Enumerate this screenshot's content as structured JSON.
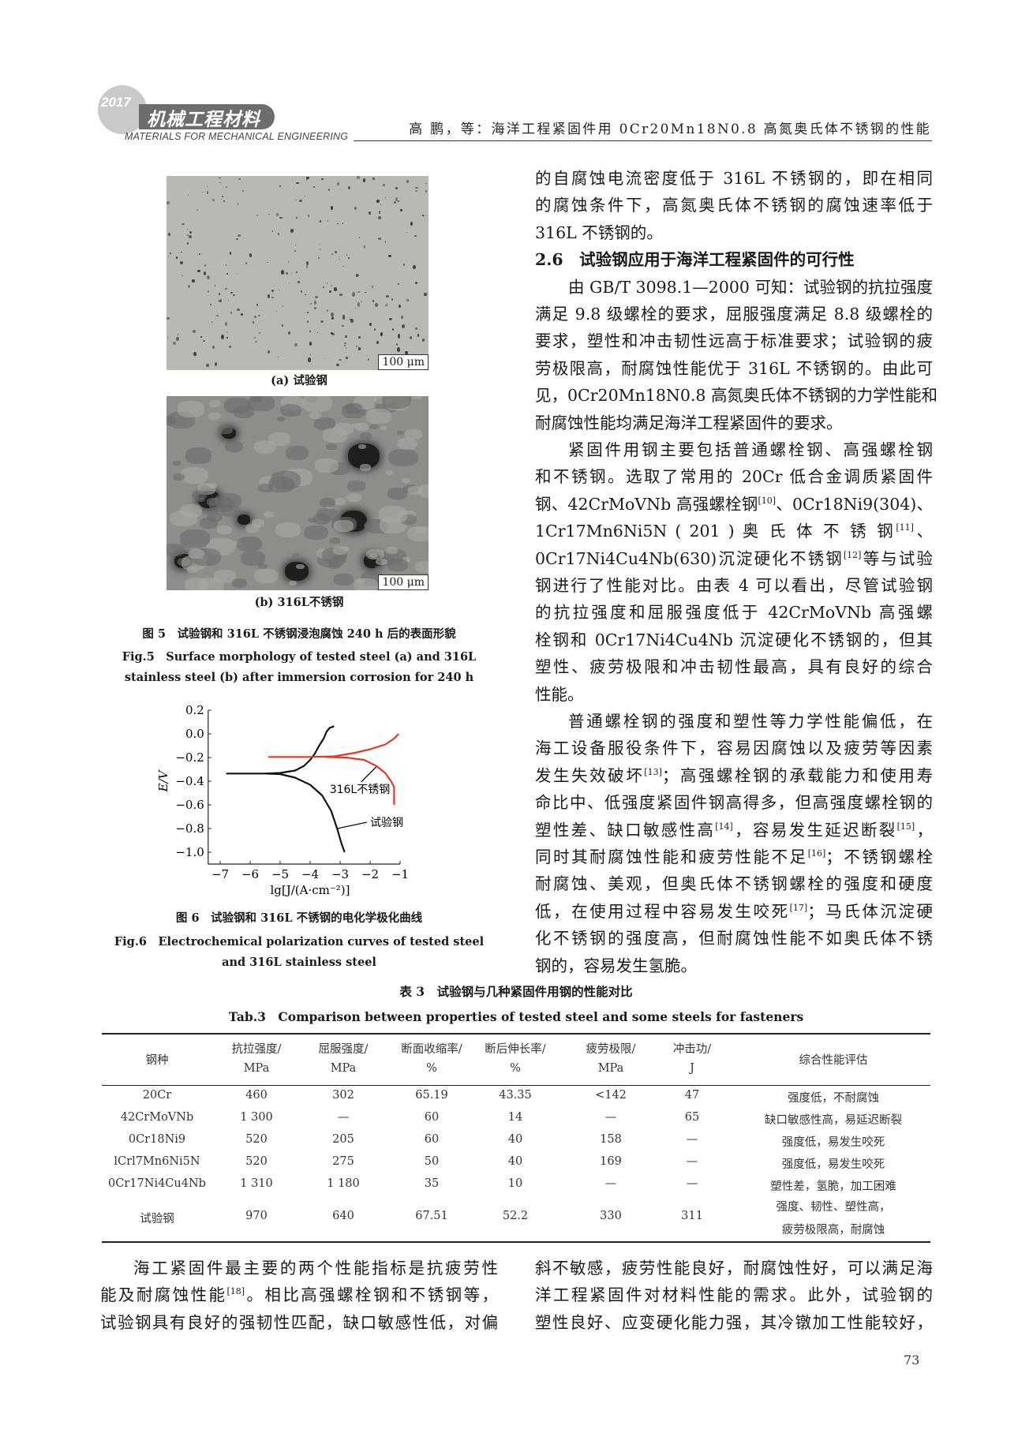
{
  "header": {
    "logo_year": "2017",
    "logo_cn": "机械工程材料",
    "logo_en": "MATERIALS FOR MECHANICAL ENGINEERING",
    "running_title": "高 鹏，等：海洋工程紧固件用 0Cr20Mn18N0.8 高氮奥氏体不锈钢的性能"
  },
  "figure5": {
    "scale_bar": "100 μm",
    "sub_a": "(a) 试验钢",
    "sub_b": "(b) 316L不锈钢",
    "caption_cn": "图 5　试验钢和 316L 不锈钢浸泡腐蚀 240 h 后的表面形貌",
    "caption_en_1": "Fig.5　Surface morphology of tested steel (a) and 316L",
    "caption_en_2": "stainless steel (b) after immersion corrosion for 240 h"
  },
  "figure6": {
    "caption_cn": "图 6　试验钢和 316L 不锈钢的电化学极化曲线",
    "caption_en_1": "Fig.6　Electrochemical polarization curves of tested steel",
    "caption_en_2": "and 316L stainless steel"
  },
  "chart_data": {
    "type": "line",
    "xlabel": "lg[J/(A·cm⁻²)]",
    "ylabel": "E/V",
    "xlim": [
      -7.4,
      -1
    ],
    "ylim": [
      -1.1,
      0.2
    ],
    "xticks": [
      "−7",
      "−6",
      "−5",
      "−4",
      "−3",
      "−2",
      "−1"
    ],
    "xtick_values": [
      -7,
      -6,
      -5,
      -4,
      -3,
      -2,
      -1
    ],
    "yticks": [
      "0.2",
      "0.0",
      "−0.2",
      "−0.4",
      "−0.6",
      "−0.8",
      "−1.0"
    ],
    "ytick_values": [
      0.2,
      0.0,
      -0.2,
      -0.4,
      -0.6,
      -0.8,
      -1.0
    ],
    "grid": false,
    "series": [
      {
        "name": "试验钢",
        "color": "#111111",
        "branches": [
          [
            [
              -6.8,
              -0.335
            ],
            [
              -5.5,
              -0.335
            ],
            [
              -5.0,
              -0.33
            ],
            [
              -4.5,
              -0.31
            ],
            [
              -4.2,
              -0.27
            ],
            [
              -4.0,
              -0.22
            ],
            [
              -3.85,
              -0.17
            ],
            [
              -3.7,
              -0.1
            ],
            [
              -3.55,
              -0.04
            ],
            [
              -3.45,
              0.02
            ],
            [
              -3.35,
              0.05
            ],
            [
              -3.2,
              0.065
            ]
          ],
          [
            [
              -5.5,
              -0.335
            ],
            [
              -5.0,
              -0.34
            ],
            [
              -4.5,
              -0.37
            ],
            [
              -4.0,
              -0.43
            ],
            [
              -3.6,
              -0.52
            ],
            [
              -3.3,
              -0.65
            ],
            [
              -3.1,
              -0.8
            ],
            [
              -2.95,
              -0.93
            ],
            [
              -2.85,
              -1.0
            ]
          ]
        ],
        "label_at": [
          -2.0,
          -0.78
        ],
        "arrow_to": [
          -3.1,
          -0.8
        ]
      },
      {
        "name": "316L不锈钢",
        "color": "#e03a2a",
        "branches": [
          [
            [
              -5.4,
              -0.195
            ],
            [
              -4.0,
              -0.195
            ],
            [
              -3.2,
              -0.19
            ],
            [
              -2.5,
              -0.16
            ],
            [
              -2.0,
              -0.13
            ],
            [
              -1.5,
              -0.09
            ],
            [
              -1.2,
              -0.04
            ],
            [
              -1.05,
              0.0
            ]
          ],
          [
            [
              -3.5,
              -0.195
            ],
            [
              -2.8,
              -0.2
            ],
            [
              -2.2,
              -0.22
            ],
            [
              -1.8,
              -0.27
            ],
            [
              -1.5,
              -0.33
            ],
            [
              -1.3,
              -0.4
            ],
            [
              -1.2,
              -0.45
            ],
            [
              -1.2,
              -0.6
            ]
          ]
        ],
        "label_at": [
          -3.35,
          -0.5
        ],
        "arrow_to": [
          -1.8,
          -0.28
        ]
      }
    ]
  },
  "right_column": [
    {
      "seg": [
        {
          "t": "的自腐蚀电流密度低于 316L 不锈钢的，即在相同"
        }
      ]
    },
    {
      "seg": [
        {
          "t": "的腐蚀条件下，高氮奥氏体不锈钢的腐蚀速率低于"
        }
      ]
    },
    {
      "seg": [
        {
          "t": "316L 不锈钢的。"
        }
      ],
      "last": true
    },
    {
      "seg": [
        {
          "t": "2.6　试验钢应用于海洋工程紧固件的可行性"
        }
      ],
      "heading": true
    },
    {
      "seg": [
        {
          "t": "由 GB/T 3098.1—2000 可知：试验钢的抗拉强度"
        }
      ],
      "indent": true
    },
    {
      "seg": [
        {
          "t": "满足 9.8 级螺栓的要求，屈服强度满足 8.8 级螺栓的"
        }
      ]
    },
    {
      "seg": [
        {
          "t": "要求，塑性和冲击韧性远高于标准要求；试验钢的疲"
        }
      ]
    },
    {
      "seg": [
        {
          "t": "劳极限高，耐腐蚀性能优于 316L 不锈钢的。由此可"
        }
      ]
    },
    {
      "seg": [
        {
          "t": "见，0Cr20Mn18N0.8 高氮奥氏体不锈钢的力学性能和"
        }
      ]
    },
    {
      "seg": [
        {
          "t": "耐腐蚀性能均满足海洋工程紧固件的要求。"
        }
      ],
      "last": true
    },
    {
      "seg": [
        {
          "t": "紧固件用钢主要包括普通螺栓钢、高强螺栓钢"
        }
      ],
      "indent": true
    },
    {
      "seg": [
        {
          "t": "和不锈钢。选取了常用的 20Cr 低合金调质紧固件"
        }
      ]
    },
    {
      "seg": [
        {
          "t": "钢、42CrMoVNb 高强螺栓钢"
        },
        {
          "sup": "[10]"
        },
        {
          "t": "、0Cr18Ni9(304)、"
        }
      ]
    },
    {
      "seg": [
        {
          "t": "1Cr17Mn6Ni5N ( 201 ) 奥 氏 体 不 锈 钢"
        },
        {
          "sup": "[11]"
        },
        {
          "t": "、"
        }
      ]
    },
    {
      "seg": [
        {
          "t": "0Cr17Ni4Cu4Nb(630)沉淀硬化不锈钢"
        },
        {
          "sup": "[12]"
        },
        {
          "t": "等与试验"
        }
      ]
    },
    {
      "seg": [
        {
          "t": "钢进行了性能对比。由表 4 可以看出，尽管试验钢"
        }
      ]
    },
    {
      "seg": [
        {
          "t": "的抗拉强度和屈服强度低于 42CrMoVNb 高强螺"
        }
      ]
    },
    {
      "seg": [
        {
          "t": "栓钢和 0Cr17Ni4Cu4Nb 沉淀硬化不锈钢的，但其"
        }
      ]
    },
    {
      "seg": [
        {
          "t": "塑性、疲劳极限和冲击韧性最高，具有良好的综合"
        }
      ]
    },
    {
      "seg": [
        {
          "t": "性能。"
        }
      ],
      "last": true
    },
    {
      "seg": [
        {
          "t": "普通螺栓钢的强度和塑性等力学性能偏低，在"
        }
      ],
      "indent": true
    },
    {
      "seg": [
        {
          "t": "海工设备服役条件下，容易因腐蚀以及疲劳等因素"
        }
      ]
    },
    {
      "seg": [
        {
          "t": "发生失效破坏"
        },
        {
          "sup": "[13]"
        },
        {
          "t": "；高强螺栓钢的承载能力和使用寿"
        }
      ]
    },
    {
      "seg": [
        {
          "t": "命比中、低强度紧固件钢高得多，但高强度螺栓钢的"
        }
      ]
    },
    {
      "seg": [
        {
          "t": "塑性差、缺口敏感性高"
        },
        {
          "sup": "[14]"
        },
        {
          "t": "，容易发生延迟断裂"
        },
        {
          "sup": "[15]"
        },
        {
          "t": "，"
        }
      ]
    },
    {
      "seg": [
        {
          "t": "同时其耐腐蚀性能和疲劳性能不足"
        },
        {
          "sup": "[16]"
        },
        {
          "t": "；不锈钢螺栓"
        }
      ]
    },
    {
      "seg": [
        {
          "t": "耐腐蚀、美观，但奥氏体不锈钢螺栓的强度和硬度"
        }
      ]
    },
    {
      "seg": [
        {
          "t": "低，在使用过程中容易发生咬死"
        },
        {
          "sup": "[17]"
        },
        {
          "t": "；马氏体沉淀硬"
        }
      ]
    },
    {
      "seg": [
        {
          "t": "化不锈钢的强度高，但耐腐蚀性能不如奥氏体不锈"
        }
      ]
    },
    {
      "seg": [
        {
          "t": "钢的，容易发生氢脆。"
        }
      ],
      "last": true
    }
  ],
  "table3": {
    "title_cn": "表 3　试验钢与几种紧固件用钢的性能对比",
    "title_en": "Tab.3　Comparison between properties of tested steel and some steels for fasteners",
    "headers": [
      [
        "钢种",
        ""
      ],
      [
        "抗拉强度/",
        "MPa"
      ],
      [
        "屈服强度/",
        "MPa"
      ],
      [
        "断面收缩率/",
        "%"
      ],
      [
        "断后伸长率/",
        "%"
      ],
      [
        "疲劳极限/",
        "MPa"
      ],
      [
        "冲击功/",
        "J"
      ],
      [
        "综合性能评估",
        ""
      ]
    ],
    "rows": [
      [
        "20Cr",
        "460",
        "302",
        "65.19",
        "43.35",
        "<142",
        "47",
        "强度低，不耐腐蚀"
      ],
      [
        "42CrMoVNb",
        "1 300",
        "—",
        "60",
        "14",
        "—",
        "65",
        "缺口敏感性高，易延迟断裂"
      ],
      [
        "0Cr18Ni9",
        "520",
        "205",
        "60",
        "40",
        "158",
        "—",
        "强度低，易发生咬死"
      ],
      [
        "lCrl7Mn6Ni5N",
        "520",
        "275",
        "50",
        "40",
        "169",
        "—",
        "强度低，易发生咬死"
      ],
      [
        "0Cr17Ni4Cu4Nb",
        "1 310",
        "1 180",
        "35",
        "10",
        "—",
        "—",
        "塑性差，氢脆，加工困难"
      ],
      [
        "试验钢",
        "970",
        "640",
        "67.51",
        "52.2",
        "330",
        "311",
        "强度、韧性、塑性高，|疲劳极限高，耐腐蚀"
      ]
    ]
  },
  "bottom_left": [
    {
      "seg": [
        {
          "t": "海工紧固件最主要的两个性能指标是抗疲劳性"
        }
      ],
      "indent": true
    },
    {
      "seg": [
        {
          "t": "能及耐腐蚀性能"
        },
        {
          "sup": "[18]"
        },
        {
          "t": "。相比高强螺栓钢和不锈钢等，"
        }
      ]
    },
    {
      "seg": [
        {
          "t": "试验钢具有良好的强韧性匹配，缺口敏感性低，对偏"
        }
      ]
    }
  ],
  "bottom_right": [
    {
      "seg": [
        {
          "t": "斜不敏感，疲劳性能良好，耐腐蚀性好，可以满足海"
        }
      ]
    },
    {
      "seg": [
        {
          "t": "洋工程紧固件对材料性能的需求。此外，试验钢的"
        }
      ]
    },
    {
      "seg": [
        {
          "t": "塑性良好、应变硬化能力强，其冷镦加工性能较好，"
        }
      ]
    }
  ],
  "page_number": "73"
}
